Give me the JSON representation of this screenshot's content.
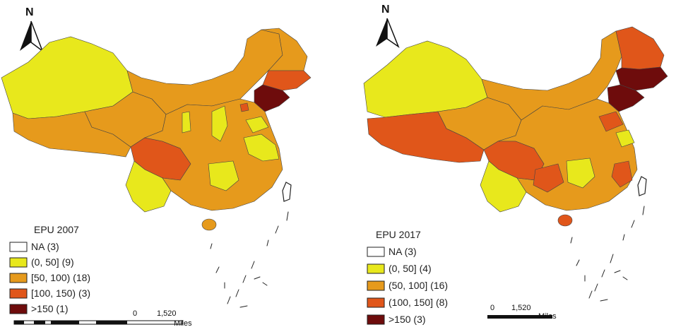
{
  "colors": {
    "na": "#ffffff",
    "class1": "#e8e81c",
    "class2": "#e69a1c",
    "class3": "#e0561a",
    "class4": "#6e0c0c"
  },
  "left_map": {
    "legend_title": "EPU 2007",
    "legend": [
      {
        "label": "NA (3)",
        "class": "na"
      },
      {
        "label": "(0, 50] (9)",
        "class": "class1"
      },
      {
        "label": "[50, 100) (18)",
        "class": "class2"
      },
      {
        "label": "[100, 150) (3)",
        "class": "class3"
      },
      {
        "label": ">150 (1)",
        "class": "class4"
      }
    ],
    "scale": {
      "zero": "0",
      "dist": "1,520",
      "unit": "Miles"
    },
    "north": "N"
  },
  "right_map": {
    "legend_title": "EPU 2017",
    "legend": [
      {
        "label": "NA (3)",
        "class": "na"
      },
      {
        "label": "(0, 50] (4)",
        "class": "class1"
      },
      {
        "label": "(50, 100] (16)",
        "class": "class2"
      },
      {
        "label": "(100, 150] (8)",
        "class": "class3"
      },
      {
        "label": ">150 (3)",
        "class": "class4"
      }
    ],
    "scale": {
      "zero": "0",
      "dist": "1,520",
      "unit": "Miles"
    },
    "north": "N"
  }
}
